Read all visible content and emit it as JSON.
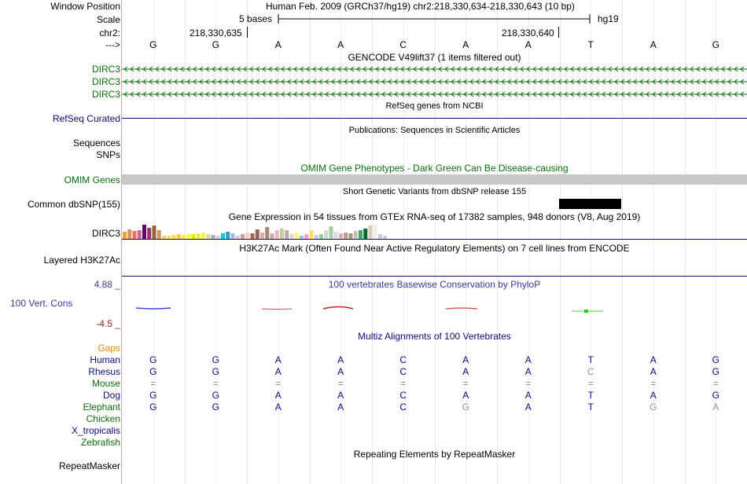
{
  "ruler": {
    "window_position_label": "Window Position",
    "scale_label": "Scale",
    "chrom_label": "chr2:",
    "strand_label": "--->",
    "window_position_text": "Human Feb. 2009 (GRCh37/hg19)   chr2:218,330,634-218,330,643 (10 bp)",
    "scale_text": "5 bases",
    "assembly": "hg19",
    "coord_left": "218,330,635",
    "coord_right": "218,330,640",
    "bases": [
      "G",
      "G",
      "A",
      "A",
      "C",
      "A",
      "A",
      "T",
      "A",
      "G"
    ]
  },
  "gencode": {
    "title": "GENCODE V49lift37 (1 items filtered out)",
    "labels": [
      "DIRC3",
      "DIRC3",
      "DIRC3"
    ],
    "color": "#0b6e0b"
  },
  "refseq": {
    "title": "RefSeq genes from NCBI",
    "label": "RefSeq Curated",
    "color": "#0c0c78"
  },
  "publications": {
    "title": "Publications: Sequences in Scientific Articles",
    "labels": [
      "Sequences",
      "SNPs"
    ]
  },
  "omim": {
    "title": "OMIM Gene Phenotypes - Dark Green Can Be Disease-causing",
    "label": "OMIM Genes",
    "color": "#0b6e0b"
  },
  "dbsnp": {
    "title": "Short Genetic Variants from dbSNP release 155",
    "label": "Common dbSNP(155)"
  },
  "gtex": {
    "title": "Gene Expression in 54 tissues from GTEx RNA-seq of 17382 samples, 948 donors (V8, Aug 2019)",
    "label": "DIRC3",
    "levels": [
      0.45,
      0.6,
      0.5,
      0.55,
      0.9,
      0.7,
      0.85,
      0.55,
      0.2,
      0.2,
      0.25,
      0.3,
      0.25,
      0.3,
      0.3,
      0.35,
      0.4,
      0.3,
      0.25,
      0.2,
      0.35,
      0.45,
      0.35,
      0.2,
      0.3,
      0.4,
      0.35,
      0.6,
      0.4,
      0.75,
      0.35,
      0.55,
      0.65,
      0.55,
      0.3,
      0.4,
      0.2,
      0.3,
      0.55,
      0.25,
      0.3,
      0.55,
      0.8,
      0.45,
      0.35,
      0.4,
      0.35,
      0.5,
      0.55,
      0.65,
      0.85,
      0.9,
      0.3,
      0.2
    ],
    "colors": [
      "#ff9933",
      "#cc9966",
      "#ff6666",
      "#cc6699",
      "#660066",
      "#993366",
      "#996633",
      "#cc9966",
      "#ffcc66",
      "#ffdd55",
      "#ffdd44",
      "#ffcc33",
      "#eeee55",
      "#ffff33",
      "#ddee00",
      "#eeee33",
      "#ffee44",
      "#ccddaa",
      "#aaaaaa",
      "#ddcccc",
      "#00cccc",
      "#3399cc",
      "#aabbcc",
      "#cccccc",
      "#cc9999",
      "#ffcccc",
      "#aa6644",
      "#996655",
      "#ddaaaa",
      "#aa8877",
      "#ccaaaa",
      "#eebbbb",
      "#cccc99",
      "#bbaaaa",
      "#dddddd",
      "#ffff66",
      "#aabbdd",
      "#ff99cc",
      "#ffdd66",
      "#cccccc",
      "#99cc99",
      "#ccddcc",
      "#aaccaa",
      "#dddddd",
      "#ccbbaa",
      "#bb9988",
      "#aa9977",
      "#ccbbbb",
      "#33aa66",
      "#006633",
      "#ddccbb",
      "#eeeeee",
      "#cccccc",
      "#cccccc"
    ]
  },
  "h3k27ac": {
    "title": "H3K27Ac Mark (Often Found Near Active Regulatory Elements) on 7 cell lines from ENCODE",
    "label": "Layered H3K27Ac"
  },
  "phylop": {
    "title": "100 vertebrates Basewise Conservation by PhyloP",
    "label": "100 Vert. Cons",
    "max_label": "4.88 _",
    "min_label": "-4.5 _",
    "color": "#3a3a9a"
  },
  "multiz": {
    "title": "Multiz Alignments of 100 Vertebrates",
    "gaps_label": "Gaps",
    "species": [
      {
        "name": "Human",
        "color": "#0c0c78",
        "bases": [
          "G",
          "G",
          "A",
          "A",
          "C",
          "A",
          "A",
          "T",
          "A",
          "G"
        ]
      },
      {
        "name": "Rhesus",
        "color": "#0c0c78",
        "bases": [
          "G",
          "G",
          "A",
          "A",
          "C",
          "A",
          "A",
          "C",
          "A",
          "G"
        ]
      },
      {
        "name": "Mouse",
        "color": "#0b6e0b",
        "bases": [
          "=",
          "=",
          "=",
          "=",
          "=",
          "=",
          "=",
          "=",
          "=",
          "="
        ]
      },
      {
        "name": "Dog",
        "color": "#0c0c78",
        "bases": [
          "G",
          "G",
          "A",
          "A",
          "C",
          "A",
          "A",
          "T",
          "A",
          "G"
        ]
      },
      {
        "name": "Elephant",
        "color": "#0b6e0b",
        "bases": [
          "G",
          "G",
          "A",
          "A",
          "C",
          "G",
          "A",
          "T",
          "G",
          "A"
        ]
      },
      {
        "name": "Chicken",
        "color": "#0b6e0b",
        "bases": []
      },
      {
        "name": "X_tropicalis",
        "color": "#0c0c78",
        "bases": []
      },
      {
        "name": "Zebrafish",
        "color": "#0b6e0b",
        "bases": []
      }
    ]
  },
  "repeatmasker": {
    "title": "Repeating Elements by RepeatMasker",
    "label": "RepeatMasker"
  }
}
